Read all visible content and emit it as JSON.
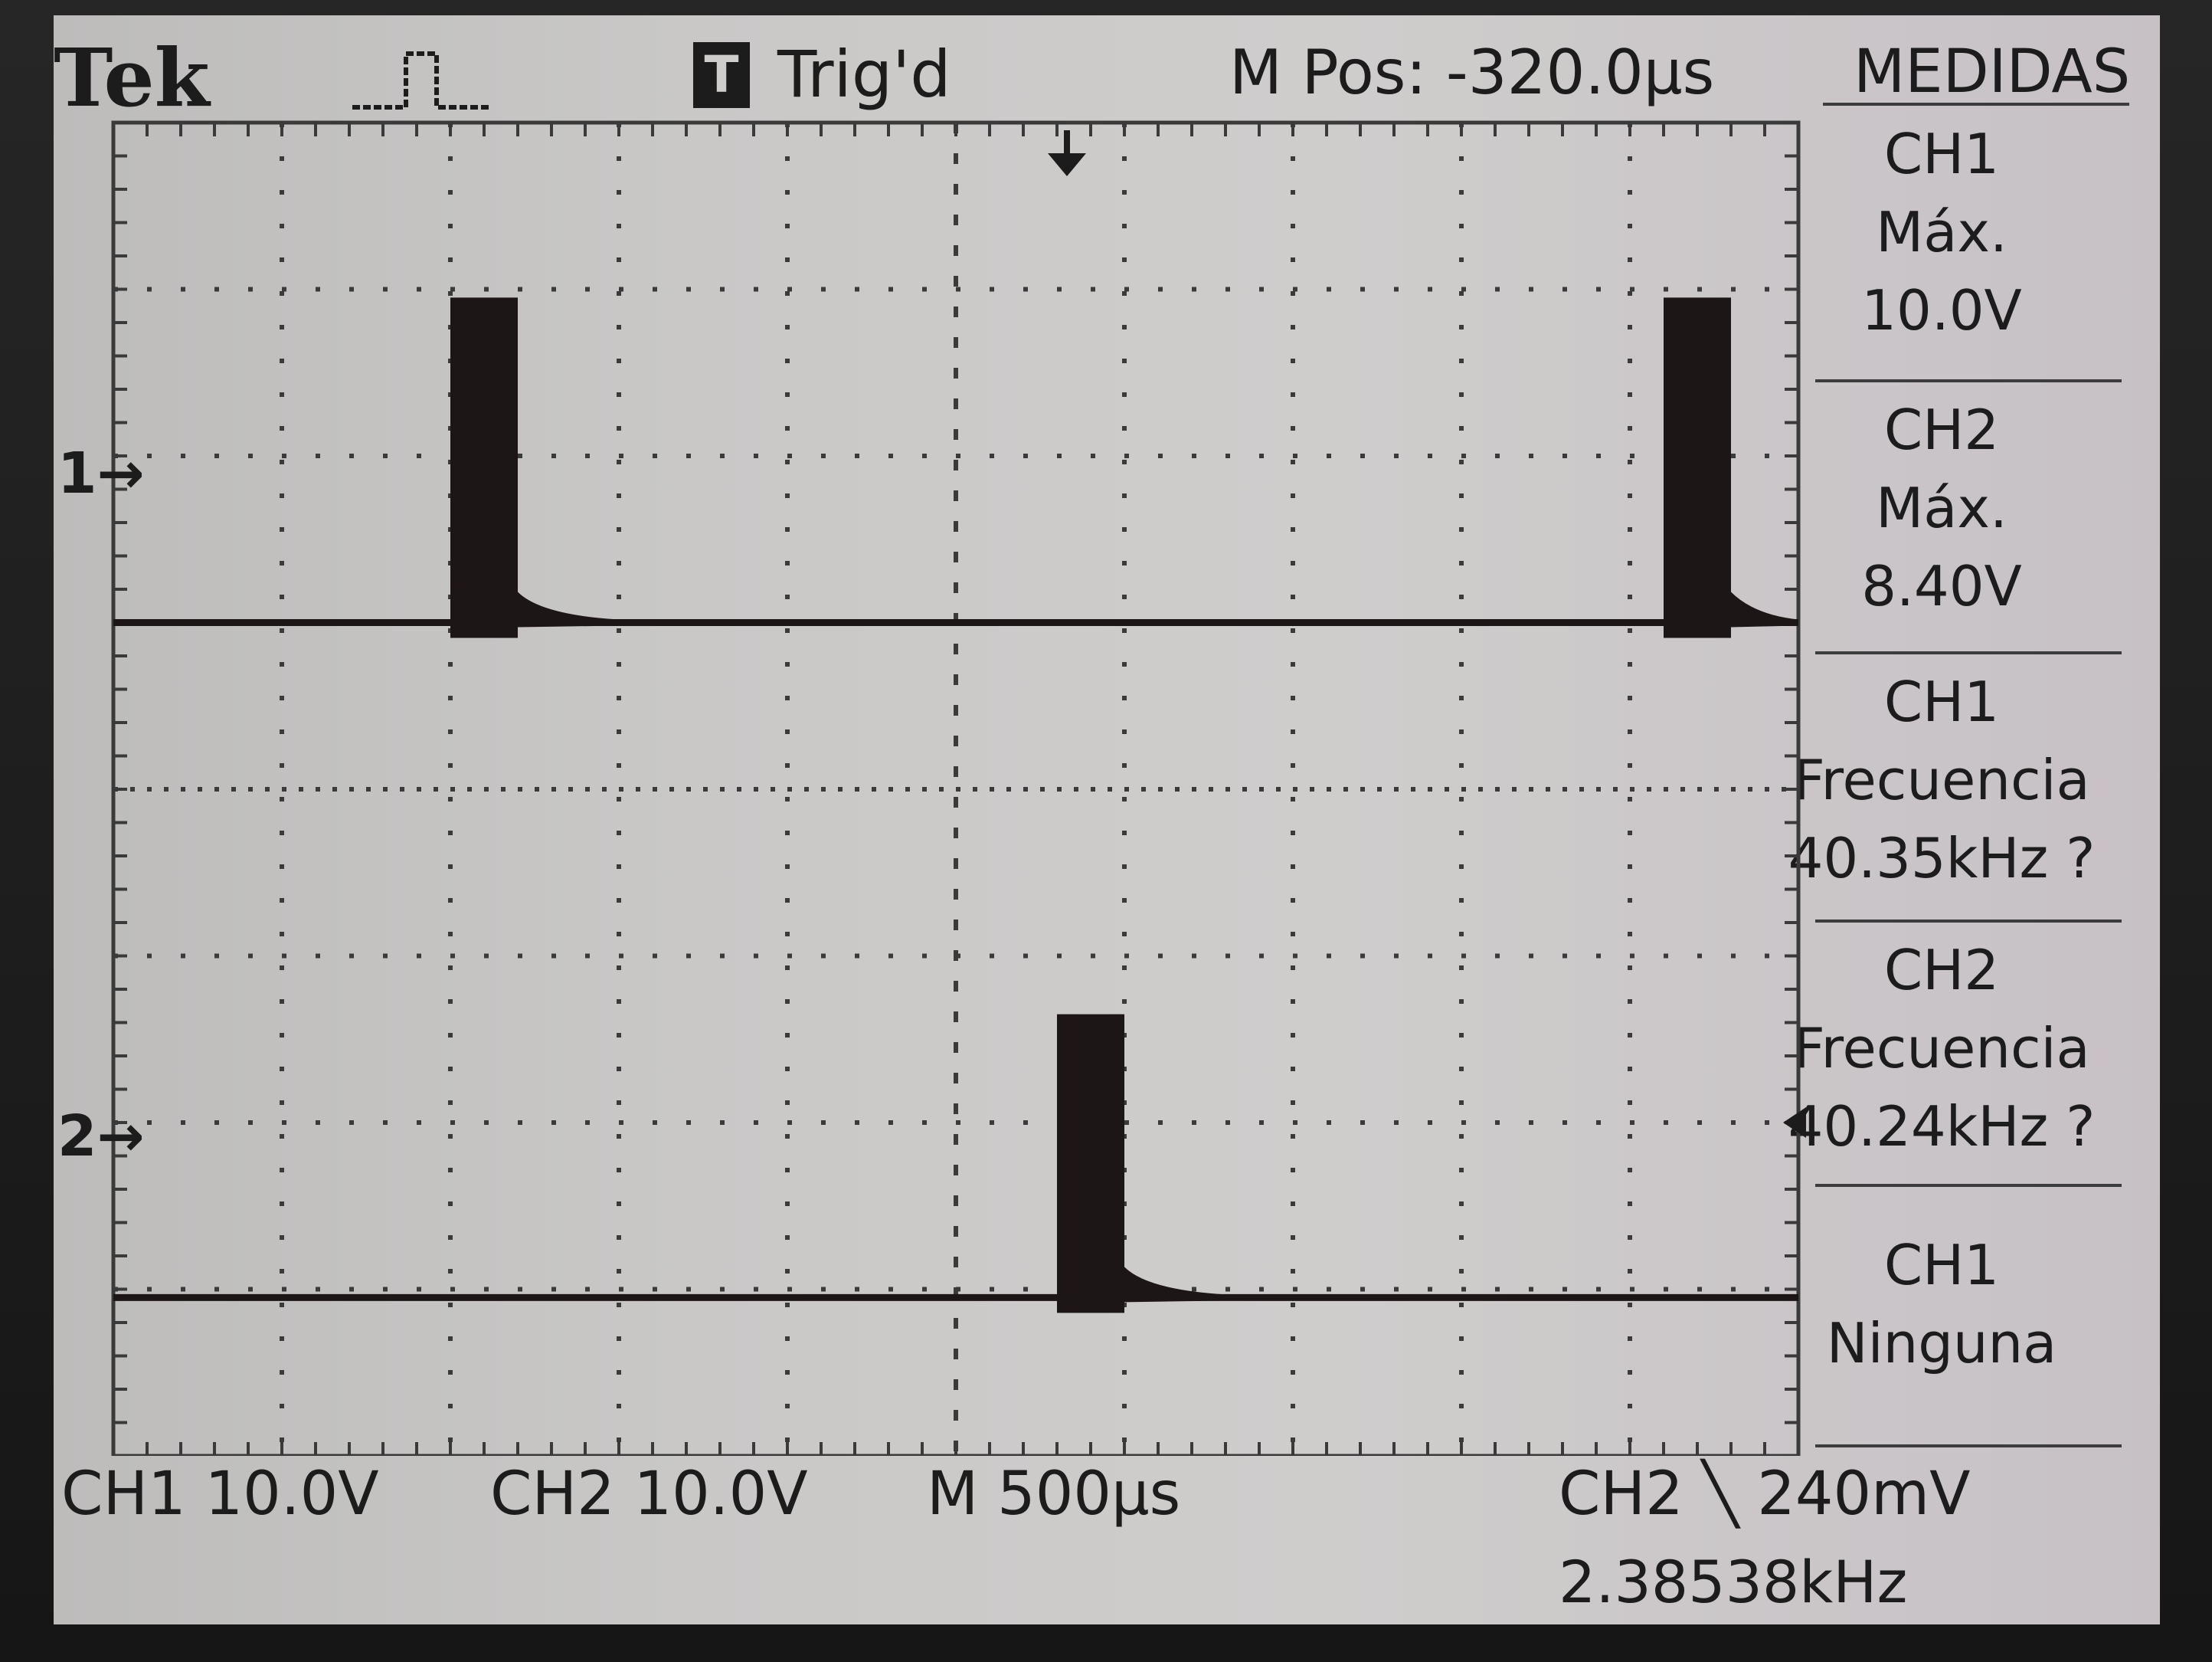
{
  "header": {
    "brand": "Tek",
    "trigger_badge": "T",
    "trigger_status": "Trig'd",
    "m_pos": "M Pos: -320.0µs",
    "menu_title": "MEDIDAS"
  },
  "measurements": [
    {
      "source": "CH1",
      "type": "Máx.",
      "value": "10.0V"
    },
    {
      "source": "CH2",
      "type": "Máx.",
      "value": "8.40V"
    },
    {
      "source": "CH1",
      "type": "Frecuencia",
      "value": "40.35kHz ?"
    },
    {
      "source": "CH2",
      "type": "Frecuencia",
      "value": "40.24kHz ?"
    },
    {
      "source": "CH1",
      "type": "Ninguna",
      "value": ""
    }
  ],
  "channel_markers": {
    "ch1": "1",
    "ch2": "2"
  },
  "status_bar": {
    "ch1_scale": "CH1  10.0V",
    "ch2_scale": "CH2  10.0V",
    "timebase": "M 500µs",
    "trigger": "CH2 ╲ 240mV",
    "trigger_frequency": "2.38538kHz"
  },
  "chart_data": {
    "type": "line",
    "time_per_div_us": 500,
    "volts_per_div": 10,
    "series": [
      {
        "name": "CH1",
        "bursts_start_div": [
          2.0,
          9.2
        ],
        "burst_width_div": 0.4,
        "peak_div": 1.95
      },
      {
        "name": "CH2",
        "bursts_start_div": [
          5.6
        ],
        "burst_width_div": 0.4,
        "peak_div": 1.7
      }
    ],
    "colors": {
      "trace": "#1c1616",
      "grid": "#3a3a3a"
    }
  }
}
